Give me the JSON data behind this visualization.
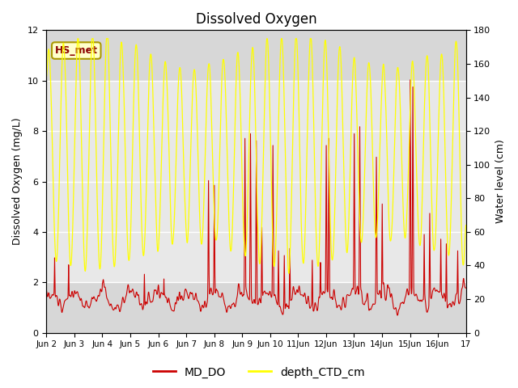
{
  "title": "Dissolved Oxygen",
  "ylabel_left": "Dissolved Oxygen (mg/L)",
  "ylabel_right": "Water level (cm)",
  "ylim_left": [
    0,
    12
  ],
  "ylim_right": [
    0,
    180
  ],
  "yticks_left": [
    0,
    2,
    4,
    6,
    8,
    10,
    12
  ],
  "yticks_right": [
    0,
    20,
    40,
    60,
    80,
    100,
    120,
    140,
    160,
    180
  ],
  "xtick_labels": [
    "Jun 2",
    "Jun 3",
    "Jun 4",
    "Jun 5",
    "Jun 6",
    "Jun 7",
    "Jun 8",
    "Jun 9",
    "Jun 10",
    "11Jun",
    "12Jun",
    "13Jun",
    "14Jun",
    "15Jun",
    "16Jun",
    "17"
  ],
  "color_do": "#cc0000",
  "color_depth": "#ffff00",
  "legend_label_do": "MD_DO",
  "legend_label_depth": "depth_CTD_cm",
  "annotation_text": "HS_met",
  "annotation_bg": "#ffffcc",
  "annotation_border": "#aa9900",
  "plot_bg_outer": "#d8d8d8",
  "plot_bg_inner": "#e8e8e8",
  "title_fontsize": 12,
  "axis_fontsize": 9,
  "legend_fontsize": 10
}
